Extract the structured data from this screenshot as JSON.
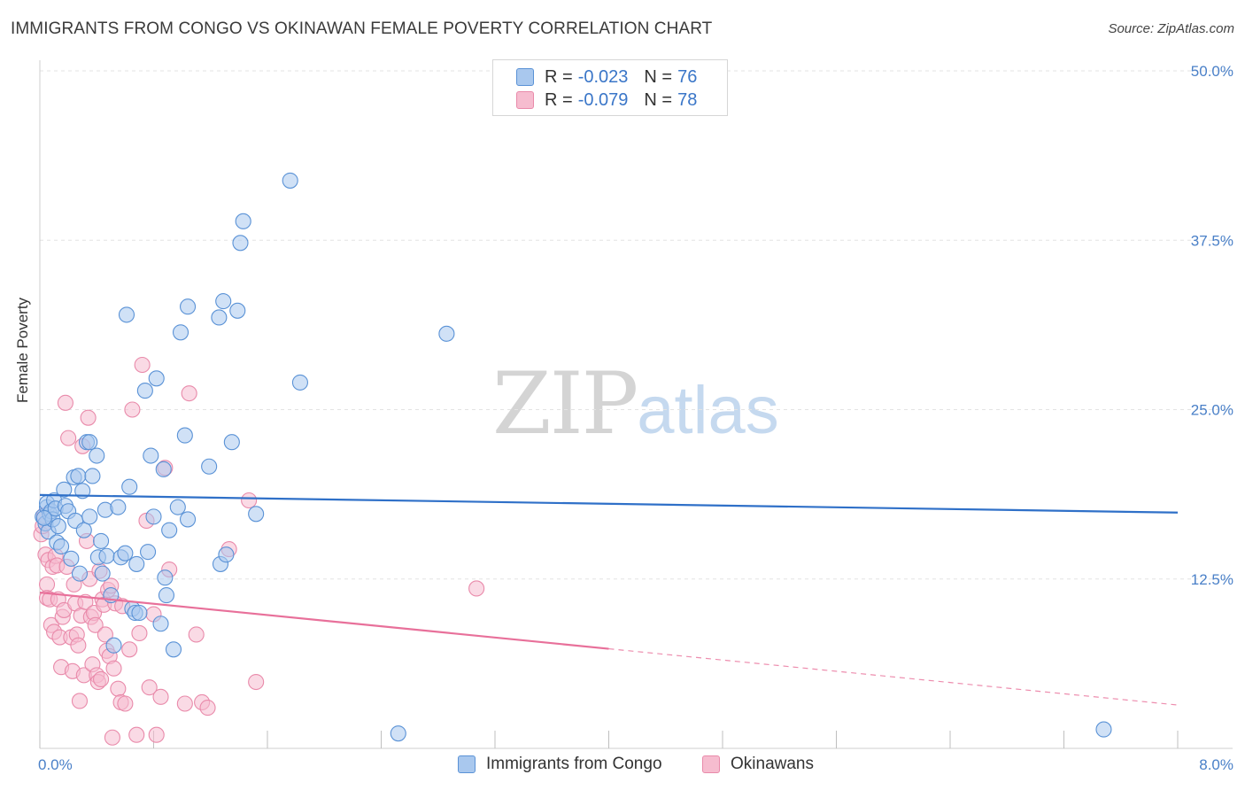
{
  "header": {
    "title": "IMMIGRANTS FROM CONGO VS OKINAWAN FEMALE POVERTY CORRELATION CHART",
    "source": "Source: ZipAtlas.com"
  },
  "watermark": {
    "zip": "ZIP",
    "atlas": "atlas"
  },
  "legend_top": {
    "rows": [
      {
        "r_key": "R =",
        "r_val": "-0.023",
        "n_key": "N =",
        "n_val": "76"
      },
      {
        "r_key": "R =",
        "r_val": "-0.079",
        "n_key": "N =",
        "n_val": "78"
      }
    ]
  },
  "legend_bottom": {
    "items": [
      {
        "label": "Immigrants from Congo"
      },
      {
        "label": "Okinawans"
      }
    ]
  },
  "colors": {
    "blue_fill": "#a9c8ee",
    "blue_stroke": "#5a92d6",
    "blue_line": "#2f70c8",
    "pink_fill": "#f6bccf",
    "pink_stroke": "#e98aaa",
    "pink_line": "#e8709a",
    "grid": "#e3e3e3",
    "axis_text": "#4a80c8"
  },
  "chart_data": {
    "type": "scatter",
    "title": "IMMIGRANTS FROM CONGO VS OKINAWAN FEMALE POVERTY CORRELATION CHART",
    "xlabel": "",
    "ylabel": "Female Poverty",
    "xlim": [
      0,
      8
    ],
    "ylim": [
      0,
      50
    ],
    "x_tick_labels": [
      {
        "value": 0,
        "label": "0.0%"
      },
      {
        "value": 8,
        "label": "8.0%"
      }
    ],
    "y_tick_labels": [
      {
        "value": 12.5,
        "label": "12.5%"
      },
      {
        "value": 25,
        "label": "25.0%"
      },
      {
        "value": 37.5,
        "label": "37.5%"
      },
      {
        "value": 50,
        "label": "50.0%"
      }
    ],
    "series": [
      {
        "name": "Immigrants from Congo",
        "R": -0.023,
        "N": 76,
        "trend": {
          "x": [
            0,
            8
          ],
          "y": [
            18.7,
            17.4
          ],
          "dashed_from": null
        },
        "points": [
          [
            0.02,
            17.1
          ],
          [
            0.04,
            16.6
          ],
          [
            0.05,
            17.8
          ],
          [
            0.05,
            18.1
          ],
          [
            0.06,
            16.0
          ],
          [
            0.07,
            17.3
          ],
          [
            0.08,
            17.5
          ],
          [
            0.09,
            16.9
          ],
          [
            0.1,
            18.3
          ],
          [
            0.11,
            17.7
          ],
          [
            0.12,
            15.2
          ],
          [
            0.13,
            16.4
          ],
          [
            0.15,
            14.9
          ],
          [
            0.17,
            19.1
          ],
          [
            0.18,
            17.9
          ],
          [
            0.2,
            17.5
          ],
          [
            0.22,
            14.0
          ],
          [
            0.24,
            20.0
          ],
          [
            0.25,
            16.8
          ],
          [
            0.27,
            20.1
          ],
          [
            0.28,
            12.9
          ],
          [
            0.3,
            19.0
          ],
          [
            0.31,
            16.1
          ],
          [
            0.33,
            22.6
          ],
          [
            0.35,
            17.1
          ],
          [
            0.35,
            22.6
          ],
          [
            0.37,
            20.1
          ],
          [
            0.4,
            21.6
          ],
          [
            0.41,
            14.1
          ],
          [
            0.43,
            15.3
          ],
          [
            0.44,
            12.9
          ],
          [
            0.46,
            17.6
          ],
          [
            0.47,
            14.2
          ],
          [
            0.5,
            11.3
          ],
          [
            0.52,
            7.6
          ],
          [
            0.55,
            17.8
          ],
          [
            0.57,
            14.1
          ],
          [
            0.6,
            14.4
          ],
          [
            0.61,
            32.0
          ],
          [
            0.63,
            19.3
          ],
          [
            0.65,
            10.3
          ],
          [
            0.67,
            10.0
          ],
          [
            0.68,
            13.6
          ],
          [
            0.7,
            10.0
          ],
          [
            0.74,
            26.4
          ],
          [
            0.76,
            14.5
          ],
          [
            0.78,
            21.6
          ],
          [
            0.8,
            17.1
          ],
          [
            0.82,
            27.3
          ],
          [
            0.85,
            9.2
          ],
          [
            0.87,
            20.6
          ],
          [
            0.88,
            12.6
          ],
          [
            0.89,
            11.3
          ],
          [
            0.91,
            16.1
          ],
          [
            0.94,
            7.3
          ],
          [
            0.97,
            17.8
          ],
          [
            0.99,
            30.7
          ],
          [
            1.02,
            23.1
          ],
          [
            1.04,
            32.6
          ],
          [
            1.04,
            16.9
          ],
          [
            1.19,
            20.8
          ],
          [
            1.26,
            31.8
          ],
          [
            1.27,
            13.6
          ],
          [
            1.29,
            33.0
          ],
          [
            1.31,
            14.3
          ],
          [
            1.35,
            22.6
          ],
          [
            1.39,
            32.3
          ],
          [
            1.41,
            37.3
          ],
          [
            1.43,
            38.9
          ],
          [
            1.52,
            17.3
          ],
          [
            1.76,
            41.9
          ],
          [
            1.83,
            27.0
          ],
          [
            2.52,
            1.1
          ],
          [
            2.86,
            30.6
          ],
          [
            7.48,
            1.4
          ],
          [
            0.03,
            17.0
          ]
        ]
      },
      {
        "name": "Okinawans",
        "R": -0.079,
        "N": 78,
        "trend": {
          "x": [
            0,
            8
          ],
          "y": [
            11.5,
            3.2
          ],
          "dashed_from": 4.0
        },
        "points": [
          [
            0.01,
            15.8
          ],
          [
            0.02,
            16.4
          ],
          [
            0.03,
            17.2
          ],
          [
            0.04,
            14.3
          ],
          [
            0.05,
            12.1
          ],
          [
            0.05,
            11.1
          ],
          [
            0.06,
            13.9
          ],
          [
            0.07,
            11.0
          ],
          [
            0.08,
            9.1
          ],
          [
            0.09,
            13.4
          ],
          [
            0.1,
            8.6
          ],
          [
            0.11,
            14.2
          ],
          [
            0.12,
            13.5
          ],
          [
            0.13,
            11.0
          ],
          [
            0.14,
            8.2
          ],
          [
            0.15,
            6.0
          ],
          [
            0.16,
            9.7
          ],
          [
            0.17,
            10.2
          ],
          [
            0.18,
            25.5
          ],
          [
            0.19,
            13.4
          ],
          [
            0.2,
            22.9
          ],
          [
            0.22,
            8.2
          ],
          [
            0.23,
            5.7
          ],
          [
            0.24,
            12.1
          ],
          [
            0.25,
            10.7
          ],
          [
            0.26,
            8.4
          ],
          [
            0.27,
            7.6
          ],
          [
            0.28,
            3.5
          ],
          [
            0.29,
            9.8
          ],
          [
            0.3,
            22.3
          ],
          [
            0.31,
            5.4
          ],
          [
            0.32,
            10.8
          ],
          [
            0.33,
            15.3
          ],
          [
            0.34,
            24.4
          ],
          [
            0.35,
            12.5
          ],
          [
            0.36,
            9.7
          ],
          [
            0.37,
            6.2
          ],
          [
            0.38,
            10.0
          ],
          [
            0.39,
            9.1
          ],
          [
            0.4,
            5.4
          ],
          [
            0.41,
            4.9
          ],
          [
            0.42,
            13.1
          ],
          [
            0.43,
            5.1
          ],
          [
            0.44,
            11.0
          ],
          [
            0.45,
            10.6
          ],
          [
            0.46,
            8.4
          ],
          [
            0.47,
            7.2
          ],
          [
            0.48,
            11.7
          ],
          [
            0.49,
            6.8
          ],
          [
            0.5,
            12.0
          ],
          [
            0.51,
            0.8
          ],
          [
            0.52,
            5.9
          ],
          [
            0.53,
            10.7
          ],
          [
            0.55,
            4.4
          ],
          [
            0.57,
            3.4
          ],
          [
            0.58,
            10.5
          ],
          [
            0.6,
            3.3
          ],
          [
            0.63,
            7.3
          ],
          [
            0.65,
            25.0
          ],
          [
            0.68,
            1.0
          ],
          [
            0.7,
            8.5
          ],
          [
            0.72,
            28.3
          ],
          [
            0.75,
            16.8
          ],
          [
            0.77,
            4.5
          ],
          [
            0.8,
            9.9
          ],
          [
            0.82,
            1.0
          ],
          [
            0.85,
            3.8
          ],
          [
            0.88,
            20.7
          ],
          [
            0.91,
            13.2
          ],
          [
            1.02,
            3.3
          ],
          [
            1.05,
            26.2
          ],
          [
            1.1,
            8.4
          ],
          [
            1.14,
            3.4
          ],
          [
            1.18,
            3.0
          ],
          [
            1.33,
            14.7
          ],
          [
            1.47,
            18.3
          ],
          [
            1.52,
            4.9
          ],
          [
            3.07,
            11.8
          ]
        ]
      }
    ]
  }
}
